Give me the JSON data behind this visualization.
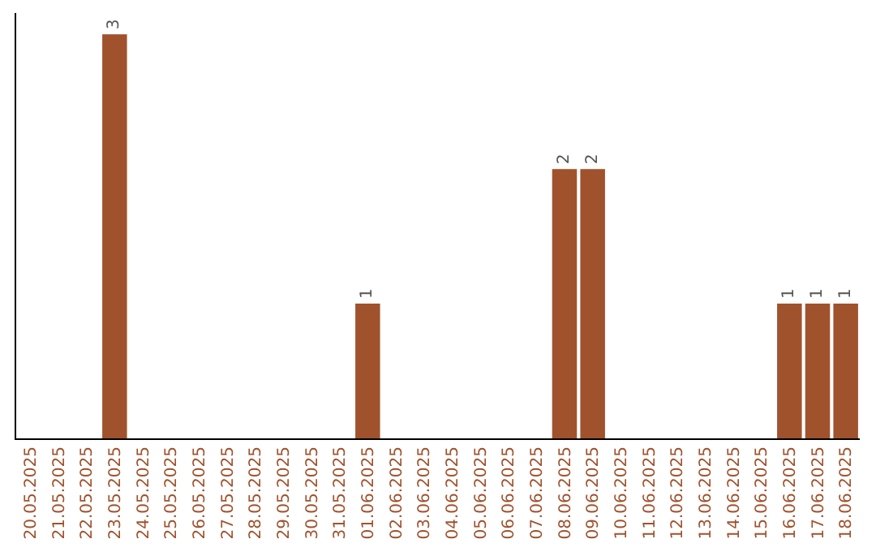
{
  "chart_data": {
    "type": "bar",
    "categories": [
      "20.05.2025",
      "21.05.2025",
      "22.05.2025",
      "23.05.2025",
      "24.05.2025",
      "25.05.2025",
      "26.05.2025",
      "27.05.2025",
      "28.05.2025",
      "29.05.2025",
      "30.05.2025",
      "31.05.2025",
      "01.06.2025",
      "02.06.2025",
      "03.06.2025",
      "04.06.2025",
      "05.06.2025",
      "06.06.2025",
      "07.06.2025",
      "08.06.2025",
      "09.06.2025",
      "10.06.2025",
      "11.06.2025",
      "12.06.2025",
      "13.06.2025",
      "14.06.2025",
      "15.06.2025",
      "16.06.2025",
      "17.06.2025",
      "18.06.2025"
    ],
    "values": [
      0,
      0,
      0,
      3,
      0,
      0,
      0,
      0,
      0,
      0,
      0,
      0,
      1,
      0,
      0,
      0,
      0,
      0,
      0,
      2,
      2,
      0,
      0,
      0,
      0,
      0,
      0,
      1,
      1,
      1
    ],
    "value_labels": [
      null,
      null,
      null,
      "3",
      null,
      null,
      null,
      null,
      null,
      null,
      null,
      null,
      "1",
      null,
      null,
      null,
      null,
      null,
      null,
      "2",
      "2",
      null,
      null,
      null,
      null,
      null,
      null,
      "1",
      "1",
      "1"
    ],
    "color": "#a0522d",
    "grid": false,
    "legend": false,
    "tick_labels": "x"
  }
}
